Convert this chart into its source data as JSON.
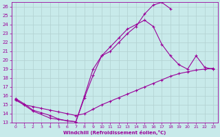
{
  "xlabel": "Windchill (Refroidissement éolien,°C)",
  "bg_color": "#c8eaea",
  "line_color": "#990099",
  "grid_color": "#b0d0d0",
  "xlim": [
    -0.5,
    23.5
  ],
  "ylim": [
    13,
    26.5
  ],
  "xticks": [
    0,
    1,
    2,
    3,
    4,
    5,
    6,
    7,
    8,
    9,
    10,
    11,
    12,
    13,
    14,
    15,
    16,
    17,
    18,
    19,
    20,
    21,
    22,
    23
  ],
  "yticks": [
    13,
    14,
    15,
    16,
    17,
    18,
    19,
    20,
    21,
    22,
    23,
    24,
    25,
    26
  ],
  "line1_x": [
    0,
    1,
    2,
    3,
    4,
    5,
    6,
    7,
    8,
    9,
    10,
    11,
    12,
    13,
    14,
    15,
    16,
    17,
    18
  ],
  "line1_y": [
    15.7,
    15.1,
    14.4,
    14.1,
    13.8,
    13.4,
    13.2,
    13.1,
    15.8,
    18.3,
    20.5,
    21.0,
    22.0,
    23.0,
    23.8,
    25.2,
    26.2,
    26.5,
    25.8
  ],
  "line2_x": [
    0,
    1,
    2,
    3,
    4,
    5,
    6,
    7,
    8,
    9,
    10,
    11,
    12,
    13,
    14,
    15,
    16,
    17,
    18,
    19,
    20,
    21,
    22,
    23
  ],
  "line2_y": [
    15.5,
    15.0,
    14.8,
    14.6,
    14.4,
    14.2,
    14.0,
    13.8,
    14.0,
    14.5,
    15.0,
    15.4,
    15.8,
    16.2,
    16.6,
    17.0,
    17.4,
    17.8,
    18.2,
    18.5,
    18.7,
    18.9,
    19.0,
    19.1
  ],
  "line3_x": [
    0,
    2,
    4,
    6,
    7,
    8,
    9,
    10,
    11,
    12,
    13,
    14,
    15,
    16,
    17,
    18,
    19,
    20,
    21,
    22,
    23
  ],
  "line3_y": [
    15.6,
    14.3,
    13.5,
    13.2,
    13.1,
    16.0,
    19.0,
    20.5,
    21.5,
    22.5,
    23.5,
    24.0,
    24.5,
    23.8,
    21.8,
    20.5,
    19.5,
    19.0,
    20.5,
    19.2,
    19.0
  ]
}
